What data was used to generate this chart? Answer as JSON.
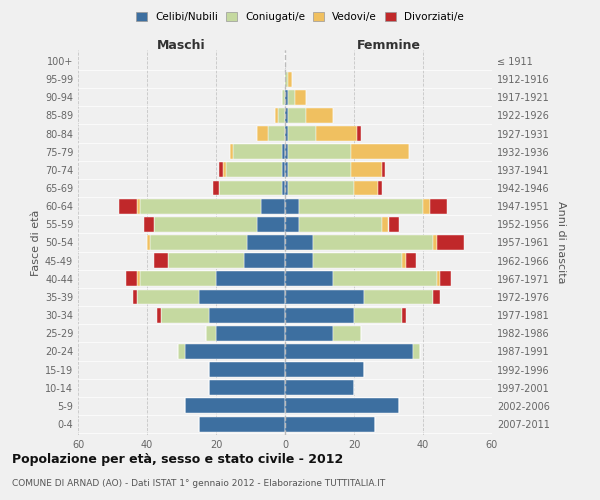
{
  "age_groups": [
    "0-4",
    "5-9",
    "10-14",
    "15-19",
    "20-24",
    "25-29",
    "30-34",
    "35-39",
    "40-44",
    "45-49",
    "50-54",
    "55-59",
    "60-64",
    "65-69",
    "70-74",
    "75-79",
    "80-84",
    "85-89",
    "90-94",
    "95-99",
    "100+"
  ],
  "birth_years": [
    "2007-2011",
    "2002-2006",
    "1997-2001",
    "1992-1996",
    "1987-1991",
    "1982-1986",
    "1977-1981",
    "1972-1976",
    "1967-1971",
    "1962-1966",
    "1957-1961",
    "1952-1956",
    "1947-1951",
    "1942-1946",
    "1937-1941",
    "1932-1936",
    "1927-1931",
    "1922-1926",
    "1917-1921",
    "1912-1916",
    "≤ 1911"
  ],
  "maschi": {
    "celibi": [
      25,
      29,
      22,
      22,
      29,
      20,
      22,
      25,
      20,
      12,
      11,
      8,
      7,
      1,
      1,
      1,
      0,
      0,
      0,
      0,
      0
    ],
    "coniugati": [
      0,
      0,
      0,
      0,
      2,
      3,
      14,
      18,
      22,
      22,
      28,
      30,
      35,
      18,
      16,
      14,
      5,
      2,
      1,
      0,
      0
    ],
    "vedovi": [
      0,
      0,
      0,
      0,
      0,
      0,
      0,
      0,
      1,
      0,
      1,
      0,
      1,
      0,
      1,
      1,
      3,
      1,
      0,
      0,
      0
    ],
    "divorziati": [
      0,
      0,
      0,
      0,
      0,
      0,
      1,
      1,
      3,
      4,
      0,
      3,
      5,
      2,
      1,
      0,
      0,
      0,
      0,
      0,
      0
    ]
  },
  "femmine": {
    "nubili": [
      26,
      33,
      20,
      23,
      37,
      14,
      20,
      23,
      14,
      8,
      8,
      4,
      4,
      1,
      1,
      1,
      1,
      1,
      1,
      0,
      0
    ],
    "coniugate": [
      0,
      0,
      0,
      0,
      2,
      8,
      14,
      20,
      30,
      26,
      35,
      24,
      36,
      19,
      18,
      18,
      8,
      5,
      2,
      1,
      0
    ],
    "vedove": [
      0,
      0,
      0,
      0,
      0,
      0,
      0,
      0,
      1,
      1,
      1,
      2,
      2,
      7,
      9,
      17,
      12,
      8,
      3,
      1,
      0
    ],
    "divorziate": [
      0,
      0,
      0,
      0,
      0,
      0,
      1,
      2,
      3,
      3,
      8,
      3,
      5,
      1,
      1,
      0,
      1,
      0,
      0,
      0,
      0
    ]
  },
  "colors": {
    "celibi": "#3d6fa0",
    "coniugati": "#c5d9a0",
    "vedovi": "#f0c060",
    "divorziati": "#c0282a"
  },
  "xlim": 60,
  "title": "Popolazione per età, sesso e stato civile - 2012",
  "subtitle": "COMUNE DI ARNAD (AO) - Dati ISTAT 1° gennaio 2012 - Elaborazione TUTTITALIA.IT",
  "xlabel_left": "Maschi",
  "xlabel_right": "Femmine",
  "ylabel_left": "Fasce di età",
  "ylabel_right": "Anni di nascita",
  "legend": [
    "Celibi/Nubili",
    "Coniugati/e",
    "Vedovi/e",
    "Divorziati/e"
  ],
  "background_color": "#f0f0f0"
}
